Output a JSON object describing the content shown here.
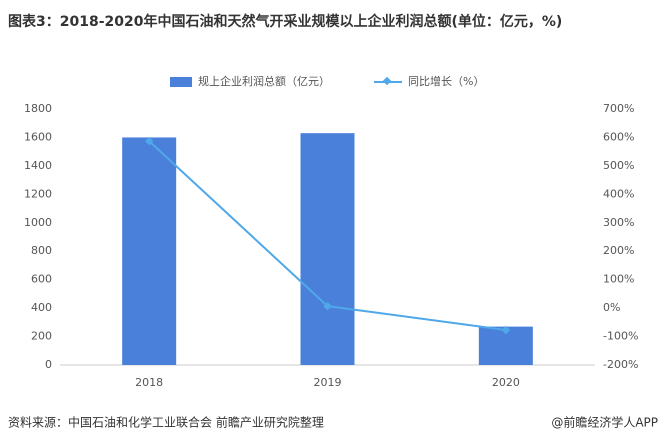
{
  "chart_data": {
    "type": "bar-line",
    "title": "图表3：2018-2020年中国石油和天然气开采业规模以上企业利润总额(单位：亿元，%)",
    "categories": [
      "2018",
      "2019",
      "2020"
    ],
    "series": [
      {
        "name": "规上企业利润总额（亿元）",
        "color": "#4a80d9",
        "type": "bar",
        "axis": "y",
        "values": [
          1600,
          1630,
          270
        ]
      },
      {
        "name": "同比增长（%）",
        "color": "#4fa8ea",
        "type": "line",
        "axis": "y2",
        "values": [
          587,
          7,
          -77
        ]
      }
    ],
    "ylim": [
      0,
      1800
    ],
    "yticks": [
      0,
      200,
      400,
      600,
      800,
      1000,
      1200,
      1400,
      1600,
      1800
    ],
    "y2lim": [
      -200,
      700
    ],
    "y2ticks": [
      {
        "value": -200,
        "label": "-200%"
      },
      {
        "value": -100,
        "label": "-100%"
      },
      {
        "value": 0,
        "label": "0%"
      },
      {
        "value": 100,
        "label": "100%"
      },
      {
        "value": 200,
        "label": "200%"
      },
      {
        "value": 300,
        "label": "300%"
      },
      {
        "value": 400,
        "label": "400%"
      },
      {
        "value": 500,
        "label": "500%"
      },
      {
        "value": 600,
        "label": "600%"
      },
      {
        "value": 700,
        "label": "700%"
      }
    ],
    "legend": "top",
    "source": "资料来源：中国石油和化学工业联合会 前瞻产业研究院整理",
    "credit": "@前瞻经济学人APP"
  }
}
